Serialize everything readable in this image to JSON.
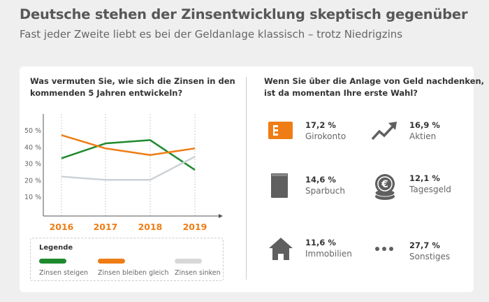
{
  "header": {
    "title": "Deutsche stehen der Zinsentwicklung skeptisch gegenüber",
    "subtitle": "Fast jeder Zweite liebt es bei der Geldanlage klassisch – trotz Niedrigzins"
  },
  "left": {
    "question_line1": "Was vermuten Sie, wie sich die Zinsen in den",
    "question_line2": "kommenden 5 Jahren entwickeln?"
  },
  "chart_data": {
    "type": "line",
    "categories": [
      "2016",
      "2017",
      "2018",
      "2019"
    ],
    "yticks": [
      "10 %",
      "20 %",
      "30 %",
      "40 %",
      "50 %"
    ],
    "ylim": [
      0,
      60
    ],
    "grid": "vertical dashed",
    "legend_title": "Legende",
    "legend_placement": "bottom",
    "series": [
      {
        "name": "Zinsen steigen",
        "color": "#1e8a2e",
        "values": [
          33,
          42,
          44,
          26
        ]
      },
      {
        "name": "Zinsen bleiben gleich",
        "color": "#ee7d16",
        "values": [
          47,
          39,
          35,
          39
        ]
      },
      {
        "name": "Zinsen sinken",
        "color": "#cdd2d6",
        "values": [
          22,
          20,
          20,
          34
        ]
      }
    ]
  },
  "right": {
    "question_line1": "Wenn Sie über die Anlage von Geld nachdenken,",
    "question_line2": "ist da momentan Ihre erste Wahl?",
    "items": [
      {
        "value": "17,2 %",
        "label": "Girokonto",
        "icon": "bank-card-icon"
      },
      {
        "value": "16,9 %",
        "label": "Aktien",
        "icon": "trend-up-icon"
      },
      {
        "value": "14,6 %",
        "label": "Sparbuch",
        "icon": "book-icon"
      },
      {
        "value": "12,1 %",
        "label": "Tagesgeld",
        "icon": "euro-coins-icon"
      },
      {
        "value": "11,6 %",
        "label": "Immobilien",
        "icon": "house-icon"
      },
      {
        "value": "27,7 %",
        "label": "Sonstiges",
        "icon": "dots-icon"
      }
    ]
  },
  "colors": {
    "accent": "#ee7d16",
    "icon_gray": "#5f5f5f"
  }
}
